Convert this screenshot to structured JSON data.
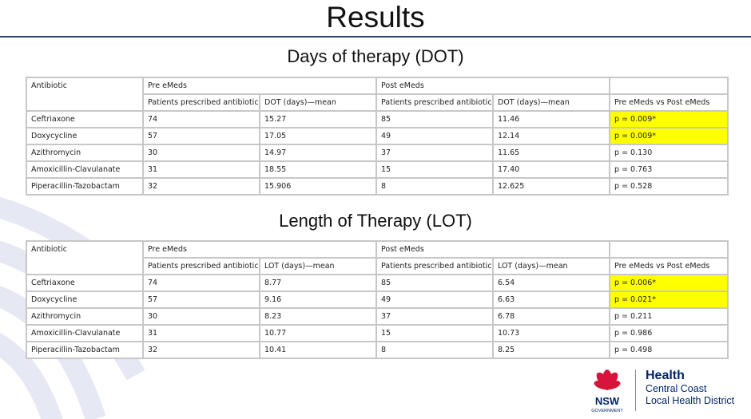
{
  "title": "Results",
  "sections": [
    {
      "heading": "Days of therapy (DOT)",
      "header": {
        "antibiotic": "Antibiotic",
        "pre_group": "Pre eMeds",
        "post_group": "Post eMeds",
        "pre_patients": "Patients prescribed antibiotic",
        "pre_mean": "DOT (days)—mean",
        "post_patients": "Patients prescribed antibiotic",
        "post_mean": "DOT (days)—mean",
        "comparison": "Pre eMeds vs Post eMeds"
      },
      "rows": [
        {
          "antibiotic": "Ceftriaxone",
          "pre_patients": "74",
          "pre_mean": "15.27",
          "post_patients": "85",
          "post_mean": "11.46",
          "p": "p = 0.009*",
          "significant": true
        },
        {
          "antibiotic": "Doxycycline",
          "pre_patients": "57",
          "pre_mean": "17.05",
          "post_patients": "49",
          "post_mean": "12.14",
          "p": "p = 0.009*",
          "significant": true
        },
        {
          "antibiotic": "Azithromycin",
          "pre_patients": "30",
          "pre_mean": "14.97",
          "post_patients": "37",
          "post_mean": "11.65",
          "p": "p = 0.130",
          "significant": false
        },
        {
          "antibiotic": "Amoxicillin-Clavulanate",
          "pre_patients": "31",
          "pre_mean": "18.55",
          "post_patients": "15",
          "post_mean": "17.40",
          "p": "p = 0.763",
          "significant": false
        },
        {
          "antibiotic": "Piperacillin-Tazobactam",
          "pre_patients": "32",
          "pre_mean": "15.906",
          "post_patients": "8",
          "post_mean": "12.625",
          "p": "p = 0.528",
          "significant": false
        }
      ]
    },
    {
      "heading": "Length of Therapy (LOT)",
      "header": {
        "antibiotic": "Antibiotic",
        "pre_group": "Pre eMeds",
        "post_group": "Post eMeds",
        "pre_patients": "Patients prescribed antibiotic",
        "pre_mean": "LOT (days)—mean",
        "post_patients": "Patients prescribed antibiotic",
        "post_mean": "LOT (days)—mean",
        "comparison": "Pre eMeds vs Post eMeds"
      },
      "rows": [
        {
          "antibiotic": "Ceftriaxone",
          "pre_patients": "74",
          "pre_mean": "8.77",
          "post_patients": "85",
          "post_mean": "6.54",
          "p": "p = 0.006*",
          "significant": true
        },
        {
          "antibiotic": "Doxycycline",
          "pre_patients": "57",
          "pre_mean": "9.16",
          "post_patients": "49",
          "post_mean": "6.63",
          "p": "p = 0.021*",
          "significant": true
        },
        {
          "antibiotic": "Azithromycin",
          "pre_patients": "30",
          "pre_mean": "8.23",
          "post_patients": "37",
          "post_mean": "6.78",
          "p": "p = 0.211",
          "significant": false
        },
        {
          "antibiotic": "Amoxicillin-Clavulanate",
          "pre_patients": "31",
          "pre_mean": "10.77",
          "post_patients": "15",
          "post_mean": "10.73",
          "p": "p = 0.986",
          "significant": false
        },
        {
          "antibiotic": "Piperacillin-Tazobactam",
          "pre_patients": "32",
          "pre_mean": "10.41",
          "post_patients": "8",
          "post_mean": "8.25",
          "p": "p = 0.498",
          "significant": false
        }
      ]
    }
  ],
  "logo": {
    "org_top": "NSW",
    "org_bottom": "GOVERNMENT",
    "name": "Health",
    "district_line1": "Central Coast",
    "district_line2": "Local Health District"
  },
  "colors": {
    "highlight": "#ffff00",
    "title_rule": "#2d4370",
    "nsw_red": "#d7153a",
    "nsw_navy": "#002664"
  }
}
